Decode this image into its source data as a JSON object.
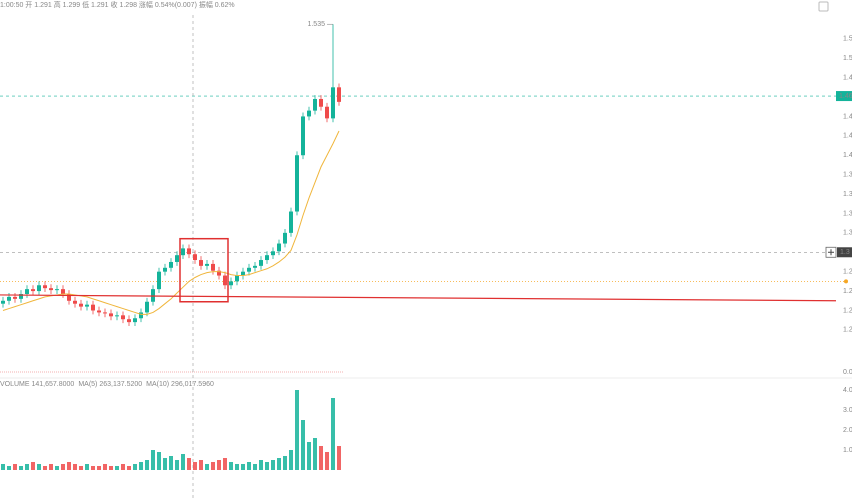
{
  "chart_data": {
    "type": "candlestick",
    "legend_text": "1:00:50 开 1.291 高 1.299 低 1.291 收 1.298 涨幅 0.54%(0.007) 振幅 0.62%",
    "open": [
      1.247,
      1.25,
      1.254,
      1.252,
      1.257,
      1.262,
      1.26,
      1.266,
      1.263,
      1.261,
      1.262,
      1.257,
      1.25,
      1.247,
      1.244,
      1.246,
      1.24,
      1.238,
      1.237,
      1.234,
      1.235,
      1.231,
      1.228,
      1.232,
      1.238,
      1.249,
      1.262,
      1.28,
      1.284,
      1.29,
      1.297,
      1.304,
      1.298,
      1.292,
      1.286,
      1.288,
      1.281,
      1.276,
      1.266,
      1.27,
      1.276,
      1.28,
      1.284,
      1.286,
      1.292,
      1.297,
      1.301,
      1.309,
      1.32,
      1.342,
      1.4,
      1.44,
      1.446,
      1.458,
      1.45,
      1.438,
      1.47
    ],
    "high": [
      1.254,
      1.258,
      1.258,
      1.261,
      1.266,
      1.266,
      1.27,
      1.27,
      1.267,
      1.266,
      1.266,
      1.261,
      1.254,
      1.251,
      1.25,
      1.25,
      1.244,
      1.242,
      1.241,
      1.239,
      1.239,
      1.235,
      1.236,
      1.242,
      1.253,
      1.266,
      1.284,
      1.288,
      1.294,
      1.301,
      1.308,
      1.308,
      1.302,
      1.296,
      1.292,
      1.292,
      1.285,
      1.28,
      1.274,
      1.28,
      1.284,
      1.288,
      1.29,
      1.296,
      1.301,
      1.305,
      1.313,
      1.324,
      1.346,
      1.404,
      1.444,
      1.45,
      1.462,
      1.462,
      1.454,
      1.535,
      1.474
    ],
    "low": [
      1.243,
      1.246,
      1.248,
      1.248,
      1.253,
      1.256,
      1.256,
      1.259,
      1.257,
      1.257,
      1.253,
      1.246,
      1.243,
      1.24,
      1.24,
      1.236,
      1.234,
      1.233,
      1.23,
      1.23,
      1.227,
      1.224,
      1.224,
      1.228,
      1.234,
      1.245,
      1.258,
      1.276,
      1.28,
      1.286,
      1.293,
      1.294,
      1.288,
      1.282,
      1.282,
      1.277,
      1.272,
      1.262,
      1.262,
      1.266,
      1.272,
      1.276,
      1.28,
      1.282,
      1.288,
      1.293,
      1.297,
      1.305,
      1.316,
      1.338,
      1.396,
      1.436,
      1.442,
      1.446,
      1.434,
      1.434,
      1.451
    ],
    "close": [
      1.25,
      1.254,
      1.252,
      1.257,
      1.262,
      1.26,
      1.266,
      1.263,
      1.261,
      1.262,
      1.257,
      1.25,
      1.247,
      1.244,
      1.246,
      1.24,
      1.238,
      1.237,
      1.234,
      1.235,
      1.231,
      1.228,
      1.232,
      1.238,
      1.249,
      1.262,
      1.28,
      1.284,
      1.29,
      1.297,
      1.304,
      1.298,
      1.292,
      1.286,
      1.288,
      1.281,
      1.276,
      1.266,
      1.27,
      1.276,
      1.28,
      1.284,
      1.286,
      1.292,
      1.297,
      1.301,
      1.309,
      1.32,
      1.342,
      1.4,
      1.44,
      1.446,
      1.458,
      1.45,
      1.438,
      1.47,
      1.455
    ],
    "ma": [
      1.24,
      1.242,
      1.244,
      1.246,
      1.248,
      1.25,
      1.252,
      1.254,
      1.255,
      1.256,
      1.257,
      1.257,
      1.256,
      1.255,
      1.254,
      1.252,
      1.25,
      1.248,
      1.246,
      1.244,
      1.242,
      1.24,
      1.238,
      1.236,
      1.236,
      1.238,
      1.242,
      1.247,
      1.252,
      1.258,
      1.264,
      1.27,
      1.274,
      1.277,
      1.279,
      1.28,
      1.28,
      1.279,
      1.277,
      1.276,
      1.276,
      1.277,
      1.279,
      1.281,
      1.283,
      1.286,
      1.29,
      1.295,
      1.302,
      1.318,
      1.338,
      1.356,
      1.372,
      1.388,
      1.4,
      1.412,
      1.425
    ],
    "volume": [
      0.3,
      0.2,
      0.3,
      0.2,
      0.3,
      0.4,
      0.3,
      0.2,
      0.3,
      0.2,
      0.3,
      0.4,
      0.3,
      0.2,
      0.3,
      0.2,
      0.2,
      0.3,
      0.2,
      0.2,
      0.3,
      0.2,
      0.3,
      0.4,
      0.5,
      1.0,
      0.9,
      0.6,
      0.7,
      0.5,
      0.8,
      0.6,
      0.4,
      0.5,
      0.3,
      0.4,
      0.5,
      0.6,
      0.4,
      0.3,
      0.3,
      0.4,
      0.3,
      0.5,
      0.4,
      0.5,
      0.6,
      0.7,
      1.0,
      4.0,
      2.5,
      1.4,
      1.6,
      1.2,
      0.9,
      3.6,
      1.2
    ],
    "up_color": "#14b39a",
    "down_color": "#ef4a4a",
    "ma_color": "#f0b63c",
    "ylim": [
      1.19,
      1.56
    ],
    "yticks": [
      1.22,
      1.24,
      1.26,
      1.28,
      1.3,
      1.32,
      1.34,
      1.36,
      1.38,
      1.4,
      1.42,
      1.44,
      1.46,
      1.48,
      1.5,
      1.52
    ],
    "volume_ylim": [
      0,
      4.5
    ],
    "volume_yticks": [
      {
        "value": 1,
        "label": "1.0"
      },
      {
        "value": 2,
        "label": "2.0"
      },
      {
        "value": 3,
        "label": "3.0"
      },
      {
        "value": 4,
        "label": "4.0"
      }
    ],
    "volume_legend": [
      "VOLUME 141,657.8000",
      "MA(5) 263,137.5200",
      "MA(10) 296,017.5960"
    ],
    "macd_zero_label": "0.0",
    "last_price": 1.461,
    "crosshair_price": 1.3,
    "crosshair_index": 31,
    "alert_price": 1.27,
    "trend_line": [
      1.256,
      1.25
    ],
    "highlight_box": {
      "from": 30,
      "to": 37,
      "high": 1.314,
      "low": 1.249
    }
  }
}
